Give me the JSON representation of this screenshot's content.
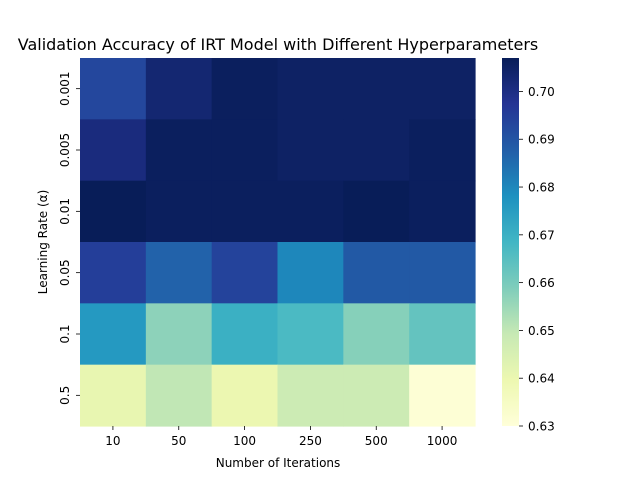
{
  "chart_data": {
    "type": "heatmap",
    "title": "Validation Accuracy of IRT Model with Different Hyperparameters",
    "xlabel": "Number of Iterations",
    "ylabel": "Learning Rate (α)",
    "x_categories": [
      "10",
      "50",
      "100",
      "250",
      "500",
      "1000"
    ],
    "y_categories": [
      "0.001",
      "0.005",
      "0.01",
      "0.05",
      "0.1",
      "0.5"
    ],
    "values": [
      [
        0.693,
        0.703,
        0.706,
        0.705,
        0.705,
        0.705
      ],
      [
        0.701,
        0.706,
        0.706,
        0.705,
        0.705,
        0.706
      ],
      [
        0.707,
        0.706,
        0.706,
        0.706,
        0.707,
        0.706
      ],
      [
        0.695,
        0.687,
        0.694,
        0.68,
        0.689,
        0.689
      ],
      [
        0.676,
        0.657,
        0.67,
        0.667,
        0.658,
        0.663
      ],
      [
        0.641,
        0.65,
        0.64,
        0.648,
        0.648,
        0.631
      ]
    ],
    "colorbar": {
      "ticks": [
        "0.63",
        "0.64",
        "0.65",
        "0.66",
        "0.67",
        "0.68",
        "0.69",
        "0.70"
      ],
      "vmin": 0.63,
      "vmax": 0.707,
      "colormap": "YlGnBu",
      "colors": [
        "#ffffd9",
        "#edf8b1",
        "#c7e9b4",
        "#7fcdbb",
        "#41b6c4",
        "#1d91c0",
        "#225ea8",
        "#253494",
        "#081d58"
      ]
    }
  }
}
